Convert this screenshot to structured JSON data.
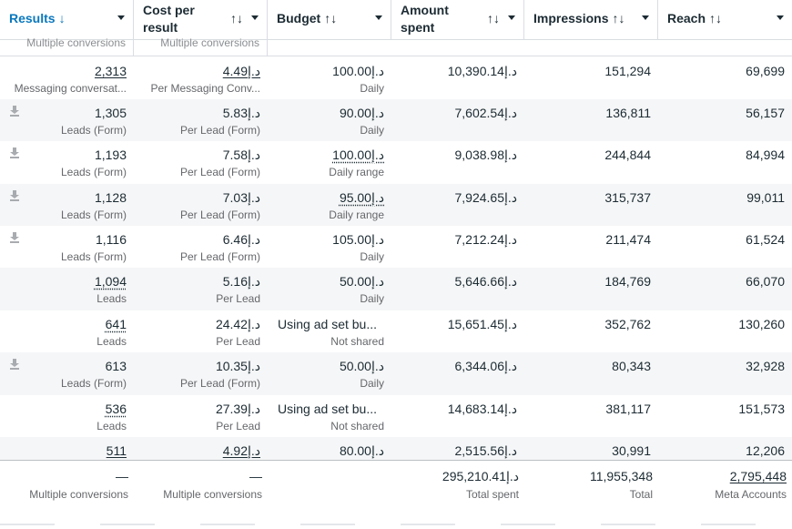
{
  "columns": [
    {
      "label": "Results",
      "sort": "↓",
      "active": true
    },
    {
      "label": "Cost per result",
      "sort": "↑↓"
    },
    {
      "label": "Budget",
      "sort": "↑↓"
    },
    {
      "label": "Amount spent",
      "sort": "↑↓"
    },
    {
      "label": "Impressions",
      "sort": "↑↓"
    },
    {
      "label": "Reach",
      "sort": "↑↓"
    }
  ],
  "subheader": {
    "results": "Multiple conversions",
    "cost": "Multiple conversions"
  },
  "rows": [
    {
      "dl": false,
      "results": "2,313",
      "results_sub": "Messaging conversat...",
      "cost": "د.إ4.49",
      "cost_sub": "Per Messaging Conv...",
      "budget": "د.إ100.00",
      "budget_sub": "Daily",
      "spent": "د.إ10,390.14",
      "impressions": "151,294",
      "reach": "69,699"
    },
    {
      "dl": true,
      "results": "1,305",
      "results_sub": "Leads (Form)",
      "cost": "د.إ5.83",
      "cost_sub": "Per Lead (Form)",
      "budget": "د.إ90.00",
      "budget_sub": "Daily",
      "spent": "د.إ7,602.54",
      "impressions": "136,811",
      "reach": "56,157"
    },
    {
      "dl": true,
      "results": "1,193",
      "results_sub": "Leads (Form)",
      "cost": "د.إ7.58",
      "cost_sub": "Per Lead (Form)",
      "budget": "د.إ100.00",
      "budget_sub": "Daily range",
      "spent": "د.إ9,038.98",
      "impressions": "244,844",
      "reach": "84,994"
    },
    {
      "dl": true,
      "results": "1,128",
      "results_sub": "Leads (Form)",
      "cost": "د.إ7.03",
      "cost_sub": "Per Lead (Form)",
      "budget": "د.إ95.00",
      "budget_sub": "Daily range",
      "spent": "د.إ7,924.65",
      "impressions": "315,737",
      "reach": "99,011"
    },
    {
      "dl": true,
      "results": "1,116",
      "results_sub": "Leads (Form)",
      "cost": "د.إ6.46",
      "cost_sub": "Per Lead (Form)",
      "budget": "د.إ105.00",
      "budget_sub": "Daily",
      "spent": "د.إ7,212.24",
      "impressions": "211,474",
      "reach": "61,524"
    },
    {
      "dl": false,
      "results": "1,094",
      "results_sub": "Leads",
      "cost": "د.إ5.16",
      "cost_sub": "Per Lead",
      "budget": "د.إ50.00",
      "budget_sub": "Daily",
      "spent": "د.إ5,646.66",
      "impressions": "184,769",
      "reach": "66,070"
    },
    {
      "dl": false,
      "results": "641",
      "results_sub": "Leads",
      "cost": "د.إ24.42",
      "cost_sub": "Per Lead",
      "budget": "Using ad set bu...",
      "budget_sub": "Not shared",
      "spent": "د.إ15,651.45",
      "impressions": "352,762",
      "reach": "130,260"
    },
    {
      "dl": true,
      "results": "613",
      "results_sub": "Leads (Form)",
      "cost": "د.إ10.35",
      "cost_sub": "Per Lead (Form)",
      "budget": "د.إ50.00",
      "budget_sub": "Daily",
      "spent": "د.إ6,344.06",
      "impressions": "80,343",
      "reach": "32,928"
    },
    {
      "dl": false,
      "results": "536",
      "results_sub": "Leads",
      "cost": "د.إ27.39",
      "cost_sub": "Per Lead",
      "budget": "Using ad set bu...",
      "budget_sub": "Not shared",
      "spent": "د.إ14,683.14",
      "impressions": "381,117",
      "reach": "151,573"
    },
    {
      "dl": false,
      "results": "511",
      "results_sub": "",
      "cost": "د.إ4.92",
      "cost_sub": "",
      "budget": "د.إ80.00",
      "budget_sub": "",
      "spent": "د.إ2,515.56",
      "impressions": "30,991",
      "reach": "12,206"
    }
  ],
  "totals": {
    "results": "—",
    "results_sub": "Multiple conversions",
    "cost": "—",
    "cost_sub": "Multiple conversions",
    "spent": "د.إ295,210.41",
    "spent_sub": "Total spent",
    "impressions": "11,955,348",
    "impressions_sub": "Total",
    "reach": "2,795,448",
    "reach_sub": "Meta Accounts"
  },
  "colors": {
    "accent": "#0a78be",
    "text": "#1c2b33",
    "muted": "#65676b",
    "alt_row": "#f5f6f7"
  }
}
